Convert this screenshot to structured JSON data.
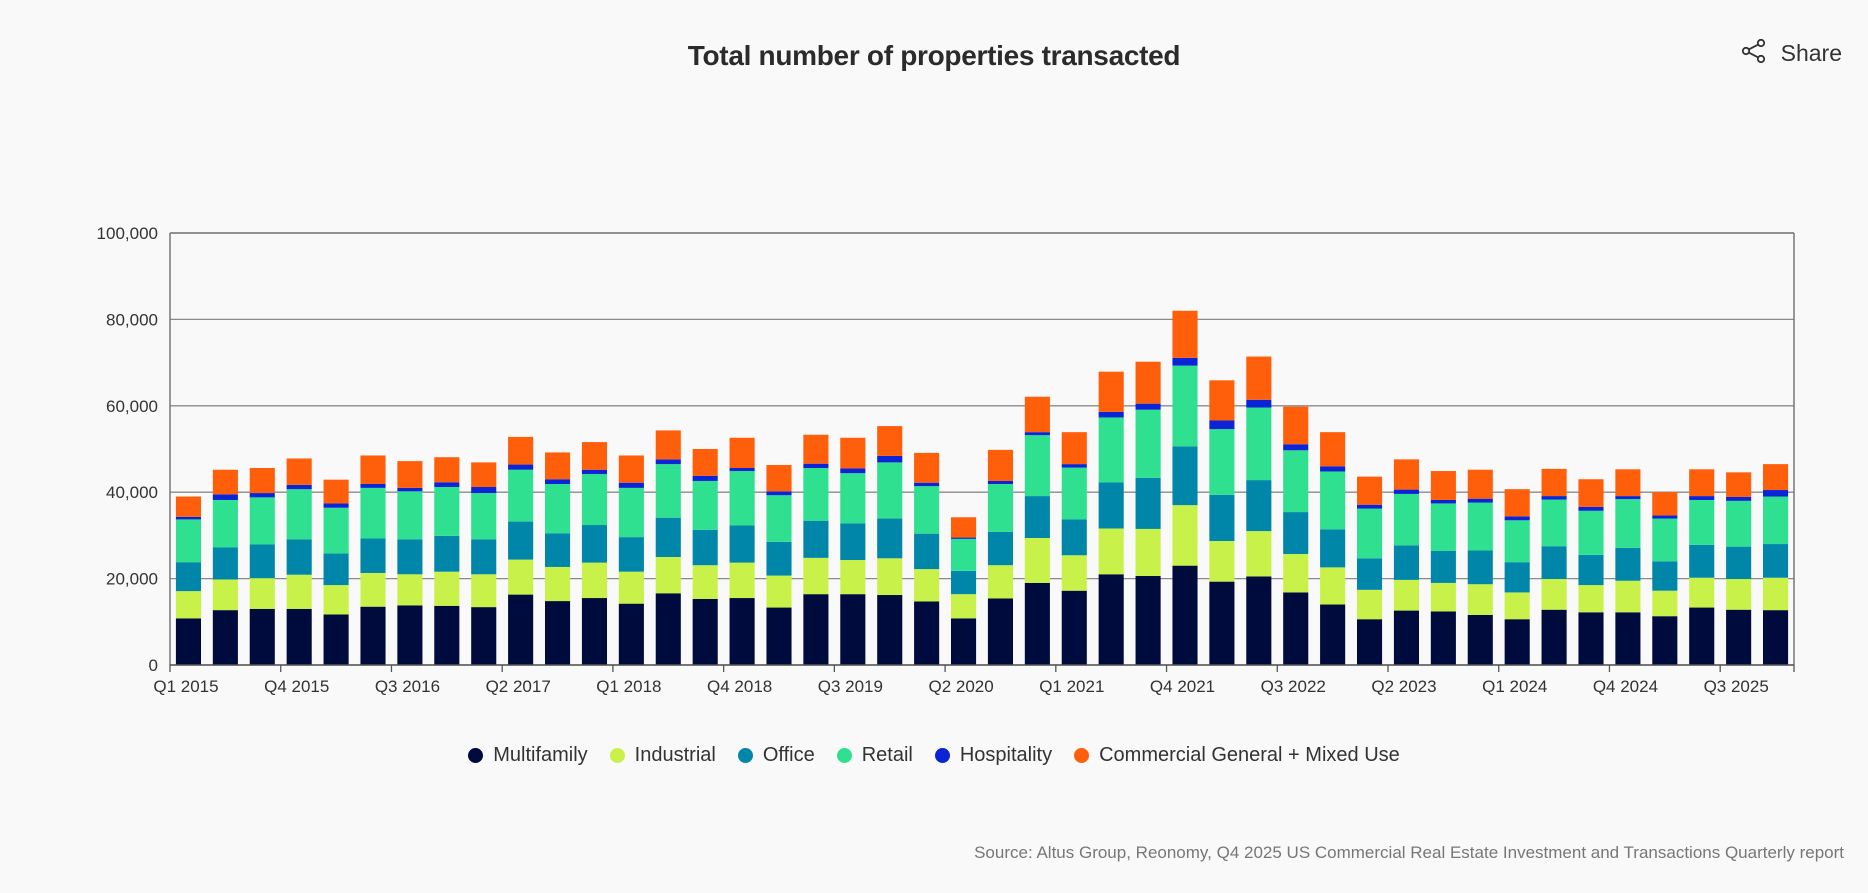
{
  "title": "Total number of properties transacted",
  "share": {
    "label": "Share",
    "icon": "share-icon"
  },
  "source": "Source: Altus Group, Reonomy, Q4 2025 US Commercial Real Estate Investment and Transactions Quarterly report",
  "chart_data": {
    "type": "bar",
    "stacked": true,
    "title": "Total number of properties transacted",
    "xlabel": "",
    "ylabel": "",
    "ylim": [
      0,
      100000
    ],
    "yticks": [
      0,
      20000,
      40000,
      60000,
      80000,
      100000
    ],
    "ytick_labels": [
      "0",
      "20,000",
      "40,000",
      "60,000",
      "80,000",
      "100,000"
    ],
    "grid": true,
    "legend_position": "bottom",
    "categories": [
      "Q1 2015",
      "Q2 2015",
      "Q3 2015",
      "Q4 2015",
      "Q1 2016",
      "Q2 2016",
      "Q3 2016",
      "Q4 2016",
      "Q1 2017",
      "Q2 2017",
      "Q3 2017",
      "Q4 2017",
      "Q1 2018",
      "Q2 2018",
      "Q3 2018",
      "Q4 2018",
      "Q1 2019",
      "Q2 2019",
      "Q3 2019",
      "Q4 2019",
      "Q1 2020",
      "Q2 2020",
      "Q3 2020",
      "Q4 2020",
      "Q1 2021",
      "Q2 2021",
      "Q3 2021",
      "Q4 2021",
      "Q1 2022",
      "Q2 2022",
      "Q3 2022",
      "Q4 2022",
      "Q1 2023",
      "Q2 2023",
      "Q3 2023",
      "Q4 2023",
      "Q1 2024",
      "Q2 2024",
      "Q3 2024",
      "Q4 2024",
      "Q1 2025",
      "Q2 2025",
      "Q3 2025",
      "Q4 2025"
    ],
    "xtick_labels": [
      "Q1 2015",
      "Q4 2015",
      "Q3 2016",
      "Q2 2017",
      "Q1 2018",
      "Q4 2018",
      "Q3 2019",
      "Q2 2020",
      "Q1 2021",
      "Q4 2021",
      "Q3 2022",
      "Q2 2023",
      "Q1 2024",
      "Q4 2024",
      "Q3 2025"
    ],
    "series": [
      {
        "name": "Multifamily",
        "color": "#000b3d",
        "values": [
          10800,
          12700,
          13000,
          13000,
          11700,
          13500,
          13800,
          13700,
          13400,
          16300,
          14800,
          15500,
          14200,
          16600,
          15300,
          15500,
          13300,
          16400,
          16400,
          16200,
          14700,
          10800,
          15400,
          19000,
          17200,
          21000,
          20600,
          23000,
          19300,
          20500,
          16800,
          14000,
          10600,
          12600,
          12400,
          11600,
          10600,
          12800,
          12200,
          12200,
          11300,
          13300,
          12800,
          12700
        ]
      },
      {
        "name": "Industrial",
        "color": "#c8f24a",
        "values": [
          6300,
          7100,
          7100,
          7900,
          6800,
          7800,
          7200,
          7900,
          7600,
          8100,
          7900,
          8200,
          7400,
          8400,
          7800,
          8200,
          7400,
          8400,
          7900,
          8500,
          7500,
          5600,
          7700,
          10400,
          8200,
          10600,
          10900,
          14000,
          9400,
          10500,
          8900,
          8600,
          6800,
          7100,
          6600,
          7100,
          6200,
          7100,
          6300,
          7300,
          5900,
          6900,
          7100,
          7500
        ]
      },
      {
        "name": "Office",
        "color": "#0086a8",
        "values": [
          6700,
          7400,
          7800,
          8200,
          7300,
          8000,
          8100,
          8300,
          8100,
          8800,
          7800,
          8700,
          8000,
          9100,
          8200,
          8600,
          7800,
          8600,
          8500,
          9200,
          8200,
          5400,
          7700,
          9700,
          8300,
          10700,
          11800,
          13600,
          10700,
          11800,
          9700,
          8800,
          7300,
          8000,
          7400,
          7800,
          7000,
          7600,
          7000,
          7600,
          6800,
          7600,
          7500,
          7800
        ]
      },
      {
        "name": "Retail",
        "color": "#2ee08f",
        "values": [
          9900,
          11000,
          10900,
          11600,
          10600,
          11700,
          11100,
          11300,
          10700,
          12000,
          11400,
          11800,
          11400,
          12400,
          11300,
          12600,
          10800,
          12200,
          11600,
          13000,
          11000,
          7400,
          11100,
          14100,
          12000,
          15000,
          15800,
          18700,
          15200,
          16800,
          14300,
          13400,
          11500,
          11900,
          11000,
          11100,
          9700,
          10800,
          10200,
          11300,
          9900,
          10400,
          10600,
          11000
        ]
      },
      {
        "name": "Hospitality",
        "color": "#0a24d6",
        "values": [
          600,
          1300,
          1000,
          1000,
          1000,
          900,
          800,
          1100,
          1400,
          1200,
          1100,
          1000,
          1200,
          1100,
          1200,
          700,
          900,
          1000,
          1100,
          1500,
          800,
          300,
          700,
          700,
          800,
          1300,
          1400,
          1800,
          2000,
          1800,
          1400,
          1200,
          900,
          1000,
          800,
          900,
          900,
          800,
          900,
          700,
          700,
          900,
          900,
          1500
        ]
      },
      {
        "name": "Commercial General + Mixed Use",
        "color": "#ff5e0a",
        "values": [
          4700,
          5700,
          5800,
          6100,
          5500,
          6600,
          6200,
          5800,
          5700,
          6400,
          6200,
          6400,
          6300,
          6700,
          6200,
          7000,
          6100,
          6700,
          7100,
          6900,
          6900,
          4700,
          7200,
          8200,
          7400,
          9300,
          9700,
          10900,
          9300,
          10000,
          8700,
          7900,
          6500,
          7000,
          6700,
          6700,
          6300,
          6300,
          6400,
          6200,
          5400,
          6200,
          5700,
          6000
        ]
      }
    ]
  }
}
